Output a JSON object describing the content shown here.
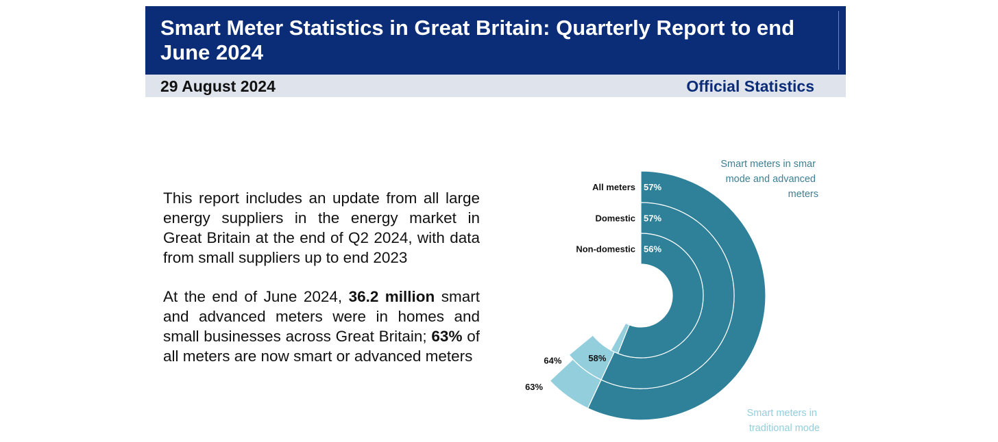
{
  "header": {
    "title": "Smart Meter Statistics in Great Britain: Quarterly Report to end June 2024",
    "date": "29 August 2024",
    "type": "Official Statistics"
  },
  "body": {
    "para1": "This report includes an update from all large energy suppliers in the energy market in Great Britain at the end of Q2 2024, with data from small suppliers up to end 2023",
    "para2_pre": "At the end of June 2024, ",
    "para2_bold1": "36.2 million",
    "para2_mid": " smart and advanced meters were in homes and small businesses across Great Britain; ",
    "para2_bold2": "63%",
    "para2_post": " of all meters are now smart or advanced meters"
  },
  "chart_data": {
    "type": "radial-bar",
    "legend": {
      "smart_mode": "Smart meters in smart mode and advanced meters",
      "traditional_mode": "Smart meters in traditional mode"
    },
    "series": [
      {
        "name": "All meters",
        "smart_mode": 57,
        "total": 63
      },
      {
        "name": "Domestic",
        "smart_mode": 57,
        "total": 64
      },
      {
        "name": "Non-domestic",
        "smart_mode": 56,
        "total": 58
      }
    ],
    "colors": {
      "smart_mode": "#2e8199",
      "traditional_mode": "#93cedd",
      "label_dark": "#111111",
      "legend_dark": "#3d7f93",
      "legend_light": "#93cedd"
    }
  }
}
